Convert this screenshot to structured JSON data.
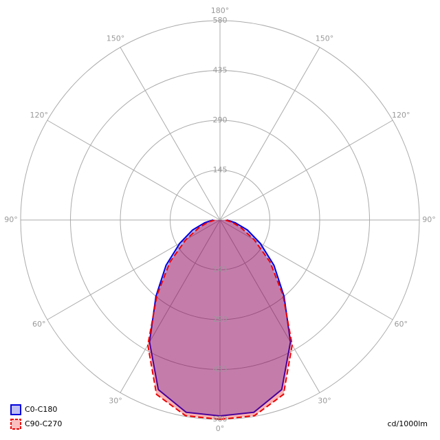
{
  "chart_data": {
    "type": "polar",
    "angles": [
      0,
      10,
      20,
      30,
      40,
      50,
      60,
      70,
      80,
      90
    ],
    "series": [
      {
        "name": "C0-C180",
        "color": "#0000dd",
        "dash": false,
        "values": [
          570,
          568,
          525,
          410,
          290,
          205,
          135,
          85,
          45,
          20
        ]
      },
      {
        "name": "C90-C270",
        "color": "#ee0000",
        "dash": true,
        "values": [
          580,
          578,
          540,
          420,
          285,
          190,
          115,
          65,
          35,
          15
        ]
      }
    ],
    "rlim": [
      0,
      580
    ],
    "rticks": [
      145,
      290,
      435,
      580
    ],
    "angle_ticks": [
      {
        "value": 0,
        "label": "0°"
      },
      {
        "value": 30,
        "label": "30°"
      },
      {
        "value": 60,
        "label": "60°"
      },
      {
        "value": 90,
        "label": "90°"
      },
      {
        "value": 120,
        "label": "120°"
      },
      {
        "value": 150,
        "label": "150°"
      },
      {
        "value": 180,
        "label": "180°"
      }
    ],
    "unit": "cd/1000lm"
  }
}
